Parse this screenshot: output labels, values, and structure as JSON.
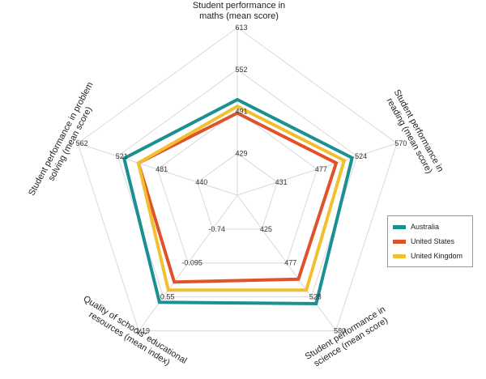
{
  "chart_data": {
    "type": "radar",
    "axes": [
      {
        "label": "Student performance in maths (mean score)",
        "ticks": [
          "613",
          "552",
          "491",
          "429"
        ]
      },
      {
        "label": "Student performance in reading (mean score)",
        "ticks": [
          "570",
          "524",
          "477",
          "431"
        ]
      },
      {
        "label": "Student performance in science (mean score)",
        "ticks": [
          "580",
          "528",
          "477",
          "425"
        ]
      },
      {
        "label": "Quality of schools' educational resources (mean index)",
        "ticks": [
          "1.19",
          "0.55",
          "-0.095",
          "-0.74"
        ]
      },
      {
        "label": "Student performance in problem solving (mean score)",
        "ticks": [
          "562",
          "521",
          "481",
          "440"
        ]
      }
    ],
    "series": [
      {
        "name": "Australia",
        "color": "#1a9092",
        "values": [
          0.57,
          0.72,
          0.8,
          0.79,
          0.71
        ]
      },
      {
        "name": "United States",
        "color": "#e0522a",
        "values": [
          0.49,
          0.62,
          0.62,
          0.64,
          0.62
        ]
      },
      {
        "name": "United Kingdom",
        "color": "#f0c030",
        "values": [
          0.53,
          0.67,
          0.7,
          0.7,
          0.62
        ]
      }
    ]
  }
}
